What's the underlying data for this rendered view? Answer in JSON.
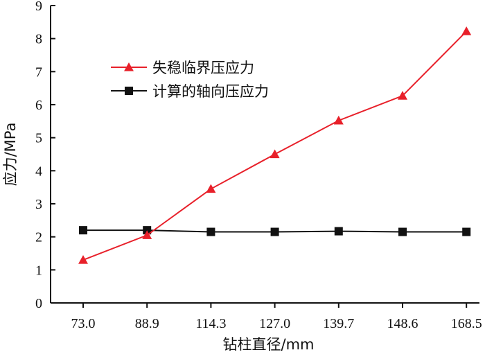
{
  "chart_data": {
    "type": "line",
    "categories": [
      "73.0",
      "88.9",
      "114.3",
      "127.0",
      "139.7",
      "148.6",
      "168.5"
    ],
    "xlabel": "钻柱直径/mm",
    "ylabel": "应力/MPa",
    "ylim": [
      0,
      9
    ],
    "yticks": [
      "0",
      "1",
      "2",
      "3",
      "4",
      "5",
      "6",
      "7",
      "8",
      "9"
    ],
    "grid": false,
    "legend_position": "upper-left",
    "series": [
      {
        "name": "失稳临界压应力",
        "color": "#e8202a",
        "marker": "triangle",
        "values": [
          1.3,
          2.05,
          3.45,
          4.5,
          5.52,
          6.27,
          8.22
        ]
      },
      {
        "name": "计算的轴向压应力",
        "color": "#111111",
        "marker": "square",
        "values": [
          2.2,
          2.2,
          2.15,
          2.15,
          2.17,
          2.15,
          2.15
        ]
      }
    ]
  }
}
